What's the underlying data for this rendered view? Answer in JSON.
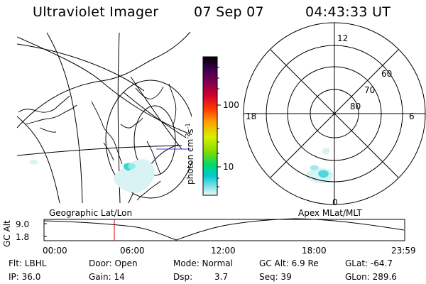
{
  "header": {
    "title": "Ultraviolet Imager",
    "date": "07 Sep 07",
    "time": "04:43:33 UT"
  },
  "colorbar": {
    "unit_prefix": "photon cm",
    "unit_exp1": "-2",
    "unit_mid": "s",
    "unit_exp2": "-1",
    "ticks": [
      "100",
      "10"
    ],
    "colors": [
      "#000000",
      "#3a004f",
      "#7a0050",
      "#d3002d",
      "#ff3b00",
      "#ffa000",
      "#d8f000",
      "#7edb00",
      "#00d86c",
      "#00c9d4",
      "#eef7f6"
    ]
  },
  "polar": {
    "hour_labels": {
      "top": "12",
      "left": "18",
      "right": "6",
      "bottom": "0"
    },
    "lat_labels": [
      "60",
      "70",
      "80"
    ]
  },
  "timeline": {
    "left_label": "Geographic Lat/Lon",
    "right_label": "Apex MLat/MLT",
    "axis_label": "GC Alt",
    "y_labels": [
      "9.0",
      "1.8"
    ],
    "x_labels": [
      "00:00",
      "06:00",
      "12:00",
      "18:00",
      "23:59"
    ],
    "marker_color": "#e00000"
  },
  "status": {
    "filter": "Flt: LBHL",
    "ip": "IP: 36.0",
    "door": "Door: Open",
    "gain": "Gain: 14",
    "mode_label": "Mode: Normal",
    "dsp_label": "Dsp:",
    "dsp_value": "3.7",
    "gc_alt": "GC Alt: 6.9 Re",
    "seq": "Seq: 39",
    "glat": "GLat: -64.7",
    "glon": "GLon: 289.6"
  }
}
